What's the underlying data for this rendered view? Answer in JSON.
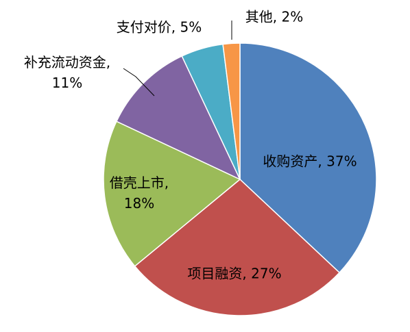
{
  "chart_data": {
    "type": "pie",
    "values": [
      37,
      27,
      18,
      11,
      5,
      2
    ],
    "value_labels": [
      "收购资产, 37%",
      "项目融资, 27%",
      "借壳上市, 18%",
      "补充流动资金, 11%",
      "支付对价, 5%",
      "其他, 2%"
    ],
    "colors": [
      "#4f81bd",
      "#c0504d",
      "#9bbb59",
      "#8064a2",
      "#4bacc6",
      "#f79646"
    ]
  }
}
